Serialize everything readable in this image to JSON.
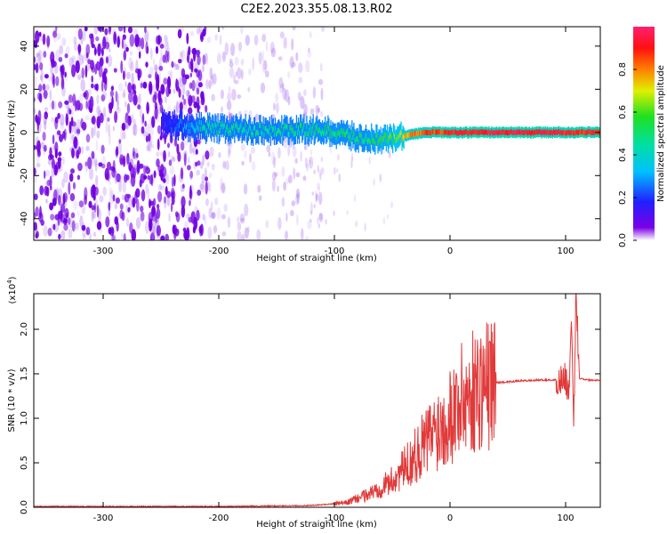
{
  "figure_title": "C2E2.2023.355.08.13.R02",
  "colorbar": {
    "label": "Normalized spectral amplitude",
    "ticks": [
      "0.0",
      "0.2",
      "0.4",
      "0.6",
      "0.8"
    ]
  },
  "chart_data": [
    {
      "type": "heatmap",
      "title": "",
      "xlabel": "Height of straight line (km)",
      "ylabel": "Frequency (Hz)",
      "xlim": [
        -360,
        130
      ],
      "ylim": [
        -50,
        49
      ],
      "x_ticks": [
        -300,
        -200,
        -100,
        0,
        100
      ],
      "x_tick_labels": [
        "-300",
        "-200",
        "-100",
        "0",
        "100"
      ],
      "y_ticks": [
        -40,
        -20,
        0,
        20,
        40
      ],
      "y_tick_labels": [
        "-40",
        "-20",
        "0",
        "20",
        "40"
      ],
      "colorscale": "rainbow (violet = 0.0 to magenta = 1.0)",
      "signal_band": [
        {
          "x": -250,
          "freq": 4,
          "amplitude": 0.15
        },
        {
          "x": -210,
          "freq": 2,
          "amplitude": 0.45
        },
        {
          "x": -160,
          "freq": 1,
          "amplitude": 0.45
        },
        {
          "x": -110,
          "freq": 1,
          "amplitude": 0.5
        },
        {
          "x": -75,
          "freq": -3,
          "amplitude": 0.5
        },
        {
          "x": -50,
          "freq": -3,
          "amplitude": 0.6
        },
        {
          "x": -35,
          "freq": -1,
          "amplitude": 0.8
        },
        {
          "x": -20,
          "freq": 0,
          "amplitude": 0.85
        },
        {
          "x": 0,
          "freq": 0,
          "amplitude": 0.9
        },
        {
          "x": 60,
          "freq": 0,
          "amplitude": 0.95
        },
        {
          "x": 100,
          "freq": 0,
          "amplitude": 0.9
        },
        {
          "x": 130,
          "freq": 0,
          "amplitude": 0.9
        }
      ],
      "noise_region": {
        "x_from": -360,
        "x_to": -110,
        "freq_from": -50,
        "freq_to": 49
      }
    },
    {
      "type": "line",
      "title": "",
      "xlabel": "Height of straight line (km)",
      "ylabel": "SNR (10 * v/v)",
      "y_multiplier": "(x10^4)",
      "y_multiplier_base": "(x10",
      "y_multiplier_exp": "4",
      "y_multiplier_close": ")",
      "xlim": [
        -360,
        130
      ],
      "ylim": [
        0,
        2.4
      ],
      "x_ticks": [
        -300,
        -200,
        -100,
        0,
        100
      ],
      "x_tick_labels": [
        "-300",
        "-200",
        "-100",
        "0",
        "100"
      ],
      "y_ticks": [
        0,
        0.5,
        1.0,
        1.5,
        2.0
      ],
      "y_tick_labels": [
        "0.0",
        "0.5",
        "1.0",
        "1.5",
        "2.0"
      ],
      "color": "#e03a3a",
      "x": [
        -360,
        -300,
        -200,
        -120,
        -90,
        -70,
        -50,
        -35,
        -20,
        -10,
        0,
        10,
        20,
        30,
        40,
        60,
        80,
        95,
        100,
        103,
        105,
        107,
        109,
        112,
        120,
        130
      ],
      "y": [
        0.01,
        0.01,
        0.01,
        0.02,
        0.05,
        0.15,
        0.3,
        0.5,
        0.75,
        0.9,
        1.05,
        1.2,
        1.3,
        1.38,
        1.4,
        1.42,
        1.43,
        1.43,
        1.45,
        1.3,
        2.0,
        0.9,
        2.45,
        1.45,
        1.43,
        1.43
      ]
    }
  ]
}
